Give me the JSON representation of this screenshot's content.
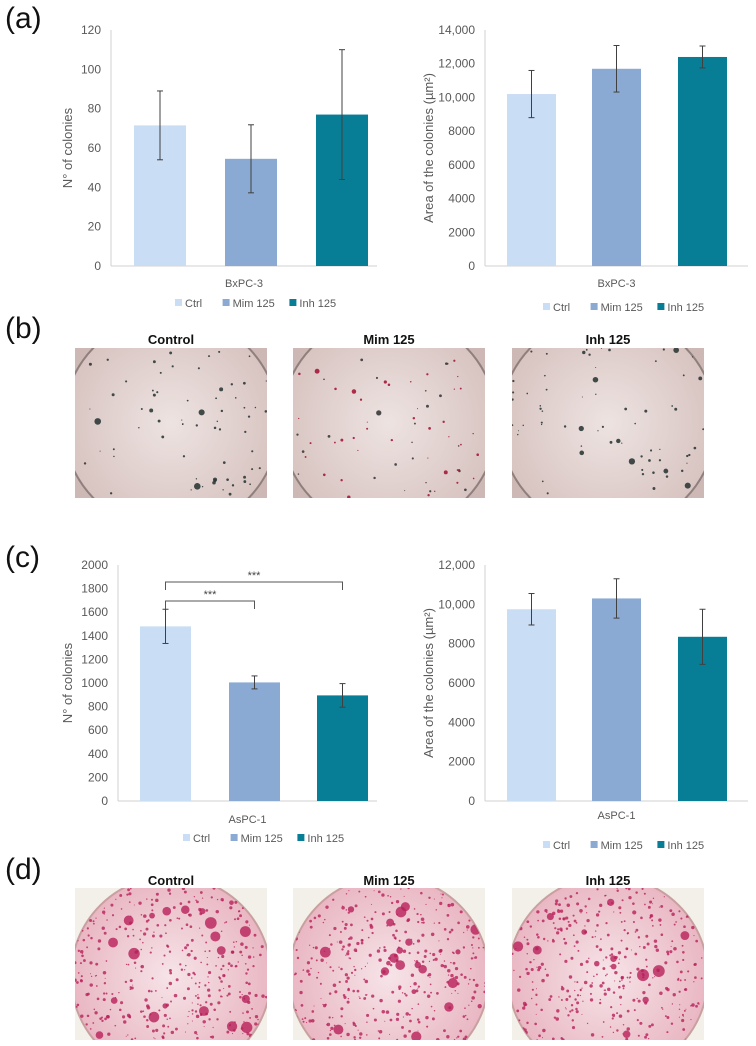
{
  "panel_labels": {
    "a": "(a)",
    "b": "(b)",
    "c": "(c)",
    "d": "(d)"
  },
  "colors": {
    "Ctrl": "#c9ddf5",
    "Mim 125": "#8aaad3",
    "Inh 125": "#087e96",
    "axis": "#d0d0d0",
    "text": "#595959",
    "error_bar": "#404040"
  },
  "chart_data": [
    {
      "type": "bar",
      "panel": "a",
      "category": "BxPC-3",
      "ylabel": "N° of colonies",
      "ylim": [
        0,
        120
      ],
      "ticks": [
        0,
        20,
        40,
        60,
        80,
        100,
        120
      ],
      "tick_labels": [
        "0",
        "20",
        "40",
        "60",
        "80",
        "100",
        "120"
      ],
      "series": [
        {
          "name": "Ctrl",
          "value": 71.5,
          "error": 17.5
        },
        {
          "name": "Mim 125",
          "value": 54.5,
          "error": 17.3
        },
        {
          "name": "Inh 125",
          "value": 77,
          "error": 33
        }
      ],
      "legend": "bottom",
      "grid": false,
      "significance": []
    },
    {
      "type": "bar",
      "panel": "a",
      "category": "BxPC-3",
      "ylabel": "Area of the colonies (µm²)",
      "ylim": [
        0,
        14000
      ],
      "ticks": [
        0,
        2000,
        4000,
        6000,
        8000,
        10000,
        12000,
        14000
      ],
      "tick_labels": [
        "0",
        "2000",
        "4000",
        "6000",
        "8000",
        "10,000",
        "12,000",
        "14,000"
      ],
      "series": [
        {
          "name": "Ctrl",
          "value": 10200,
          "error": 1400
        },
        {
          "name": "Mim 125",
          "value": 11700,
          "error": 1380
        },
        {
          "name": "Inh 125",
          "value": 12400,
          "error": 650
        }
      ],
      "legend": "bottom",
      "grid": false,
      "significance": []
    },
    {
      "type": "bar",
      "panel": "c",
      "category": "AsPC-1",
      "ylabel": "N° of colonies",
      "ylim": [
        0,
        2000
      ],
      "ticks": [
        0,
        200,
        400,
        600,
        800,
        1000,
        1200,
        1400,
        1600,
        1800,
        2000
      ],
      "tick_labels": [
        "0",
        "200",
        "400",
        "600",
        "800",
        "1000",
        "1200",
        "1400",
        "1600",
        "1800",
        "2000"
      ],
      "series": [
        {
          "name": "Ctrl",
          "value": 1480,
          "error": 145
        },
        {
          "name": "Mim 125",
          "value": 1005,
          "error": 55
        },
        {
          "name": "Inh 125",
          "value": 895,
          "error": 100
        }
      ],
      "legend": "bottom",
      "grid": false,
      "significance": [
        {
          "from": "Ctrl",
          "to": "Mim 125",
          "label": "***"
        },
        {
          "from": "Ctrl",
          "to": "Inh 125",
          "label": "***"
        }
      ]
    },
    {
      "type": "bar",
      "panel": "c",
      "category": "AsPC-1",
      "ylabel": "Area of the colonies (µm²)",
      "ylim": [
        0,
        12000
      ],
      "ticks": [
        0,
        2000,
        4000,
        6000,
        8000,
        10000,
        12000
      ],
      "tick_labels": [
        "0",
        "2000",
        "4000",
        "6000",
        "8000",
        "10,000",
        "12,000"
      ],
      "series": [
        {
          "name": "Ctrl",
          "value": 9750,
          "error": 800
        },
        {
          "name": "Mim 125",
          "value": 10300,
          "error": 1000
        },
        {
          "name": "Inh 125",
          "value": 8350,
          "error": 1400
        }
      ],
      "legend": "bottom",
      "grid": false,
      "significance": []
    }
  ],
  "photos_b": [
    {
      "title": "Control",
      "stain": "dark"
    },
    {
      "title": "Mim 125",
      "stain": "red"
    },
    {
      "title": "Inh 125",
      "stain": "dark"
    }
  ],
  "photos_d": [
    {
      "title": "Control"
    },
    {
      "title": "Mim 125"
    },
    {
      "title": "Inh 125"
    }
  ]
}
